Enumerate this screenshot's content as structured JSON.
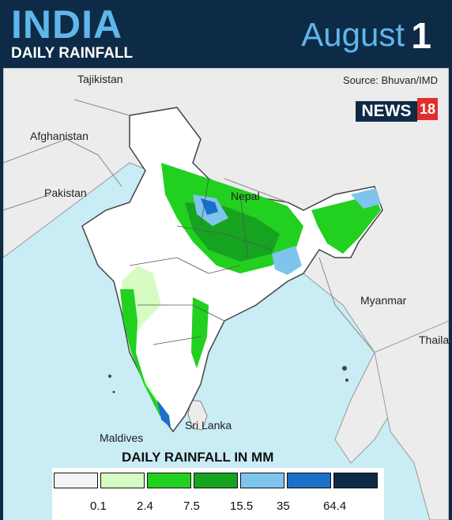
{
  "header": {
    "title": "INDIA",
    "subtitle": "DAILY RAINFALL",
    "month": "August",
    "day": "1"
  },
  "source": "Source: Bhuvan/IMD",
  "logo": {
    "text": "NEWS",
    "number": "18"
  },
  "labels": {
    "tajikistan": "Tajikistan",
    "afghanistan": "Afghanistan",
    "pakistan": "Pakistan",
    "nepal": "Nepal",
    "myanmar": "Myanmar",
    "thailand": "Thaila",
    "srilanka": "Sri Lanka",
    "maldives": "Maldives"
  },
  "legend": {
    "title": "DAILY RAINFALL IN MM",
    "colors": [
      "#f4f4f4",
      "#d6fcc4",
      "#22d020",
      "#16a320",
      "#7fc4ec",
      "#1a6fc9",
      "#0d2b46"
    ],
    "ticks": [
      "0.1",
      "2.4",
      "7.5",
      "15.5",
      "35",
      "64.4"
    ]
  }
}
